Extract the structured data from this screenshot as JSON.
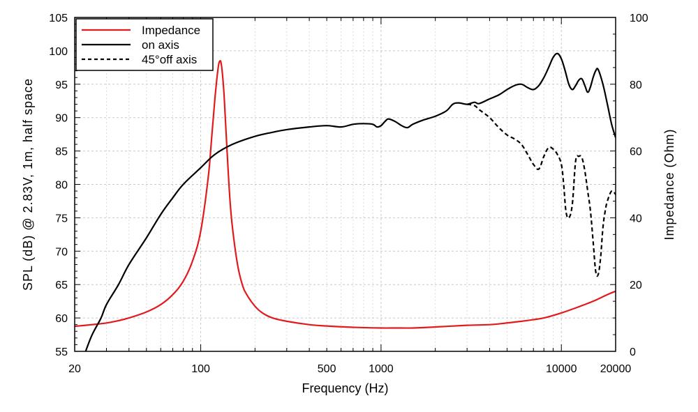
{
  "chart_data": {
    "type": "line",
    "xscale": "log",
    "xlabel": "Frequency (Hz)",
    "ylabel": "SPL (dB) @ 2.83V, 1m, half space",
    "y2label": "Impedance (Ohm)",
    "xlim": [
      20,
      20000
    ],
    "ylim": [
      55,
      105
    ],
    "y2lim": [
      0,
      100
    ],
    "xticks": [
      20,
      100,
      500,
      1000,
      10000,
      20000
    ],
    "xtick_labels": [
      "20",
      "100",
      "500",
      "1000",
      "10000",
      "20000"
    ],
    "yticks": [
      55,
      60,
      65,
      70,
      75,
      80,
      85,
      90,
      95,
      100,
      105
    ],
    "ytick_labels": [
      "55",
      "60",
      "65",
      "70",
      "75",
      "80",
      "85",
      "90",
      "95",
      "100",
      "105"
    ],
    "y2ticks": [
      0,
      20,
      40,
      60,
      80,
      100
    ],
    "y2tick_labels": [
      "0",
      "20",
      "40",
      "60",
      "80",
      "100"
    ],
    "grid": true,
    "legend_position": "top-left",
    "legend": [
      "Impedance",
      "on axis",
      "45°off axis"
    ],
    "colors": {
      "impedance": "#e31a1c",
      "on_axis": "#000000",
      "off_axis": "#000000"
    },
    "series": [
      {
        "name": "Impedance",
        "axis": "right",
        "color": "#e31a1c",
        "dash": "solid",
        "x": [
          20,
          25,
          30,
          35,
          40,
          50,
          60,
          70,
          80,
          90,
          100,
          110,
          115,
          120,
          125,
          128,
          130,
          132,
          135,
          140,
          145,
          150,
          160,
          170,
          180,
          200,
          220,
          250,
          300,
          400,
          500,
          700,
          1000,
          1200,
          1500,
          2000,
          3000,
          4000,
          5000,
          6000,
          7000,
          8000,
          10000,
          12000,
          15000,
          18000,
          20000
        ],
        "values": [
          7.5,
          8,
          8.5,
          9.2,
          10,
          11.8,
          14,
          17,
          21,
          27,
          36,
          52,
          64,
          76,
          85,
          87,
          86,
          83,
          76,
          60,
          46,
          37,
          26,
          20,
          17,
          13.5,
          11.5,
          10,
          9,
          8,
          7.6,
          7.2,
          7,
          7,
          7,
          7.3,
          7.8,
          8,
          8.5,
          9,
          9.5,
          10,
          11.5,
          13,
          15,
          17,
          18
        ]
      },
      {
        "name": "on axis",
        "axis": "left",
        "color": "#000000",
        "dash": "solid",
        "x": [
          20,
          22,
          23,
          25,
          28,
          30,
          35,
          40,
          50,
          60,
          70,
          80,
          100,
          120,
          150,
          200,
          250,
          300,
          400,
          500,
          600,
          700,
          800,
          900,
          950,
          1000,
          1050,
          1100,
          1200,
          1300,
          1400,
          1500,
          1700,
          2000,
          2300,
          2500,
          2700,
          3000,
          3300,
          3500,
          4000,
          4500,
          5000,
          5500,
          6000,
          6500,
          7000,
          7500,
          8000,
          8500,
          9000,
          9500,
          10000,
          10500,
          11000,
          11500,
          12000,
          12500,
          13000,
          13500,
          14000,
          14500,
          15000,
          15500,
          16000,
          17000,
          18000,
          19000,
          20000
        ],
        "values": [
          50,
          53.5,
          55,
          57.5,
          60,
          62,
          65,
          68,
          72,
          75.5,
          78,
          80,
          82.5,
          84.5,
          86,
          87.2,
          87.8,
          88.2,
          88.6,
          88.8,
          88.6,
          89,
          89.1,
          89,
          88.6,
          88.8,
          89.4,
          89.8,
          89.4,
          88.8,
          88.5,
          89,
          89.6,
          90.2,
          91,
          92,
          92.2,
          92,
          92.3,
          92.1,
          92.8,
          93.4,
          94.2,
          94.8,
          95,
          94.5,
          94.2,
          94.8,
          96,
          97.5,
          99,
          99.6,
          98.8,
          97,
          95,
          94.2,
          94.8,
          95.6,
          95.8,
          94.8,
          93.8,
          94.6,
          96,
          97,
          97.2,
          95,
          92,
          89,
          87
        ]
      },
      {
        "name": "45°off axis",
        "axis": "left",
        "color": "#000000",
        "dash": "dashed",
        "x": [
          3000,
          3300,
          3500,
          4000,
          4500,
          5000,
          5500,
          6000,
          6500,
          7000,
          7500,
          8000,
          8500,
          9000,
          9500,
          10000,
          10300,
          10600,
          11000,
          11500,
          12000,
          12500,
          13000,
          13500,
          14000,
          14500,
          15000,
          15500,
          16000,
          16500,
          17000,
          17500,
          18000,
          19000,
          20000
        ],
        "values": [
          92,
          91.8,
          91.2,
          90,
          88.5,
          87.4,
          86.8,
          86,
          84.5,
          83,
          82.3,
          84.2,
          85.5,
          85.3,
          84.5,
          83,
          80,
          76,
          75,
          77,
          83.5,
          84.2,
          84,
          82,
          79,
          76,
          71.5,
          67,
          66.5,
          69,
          73.5,
          76,
          77.5,
          79,
          78.5
        ]
      }
    ]
  }
}
